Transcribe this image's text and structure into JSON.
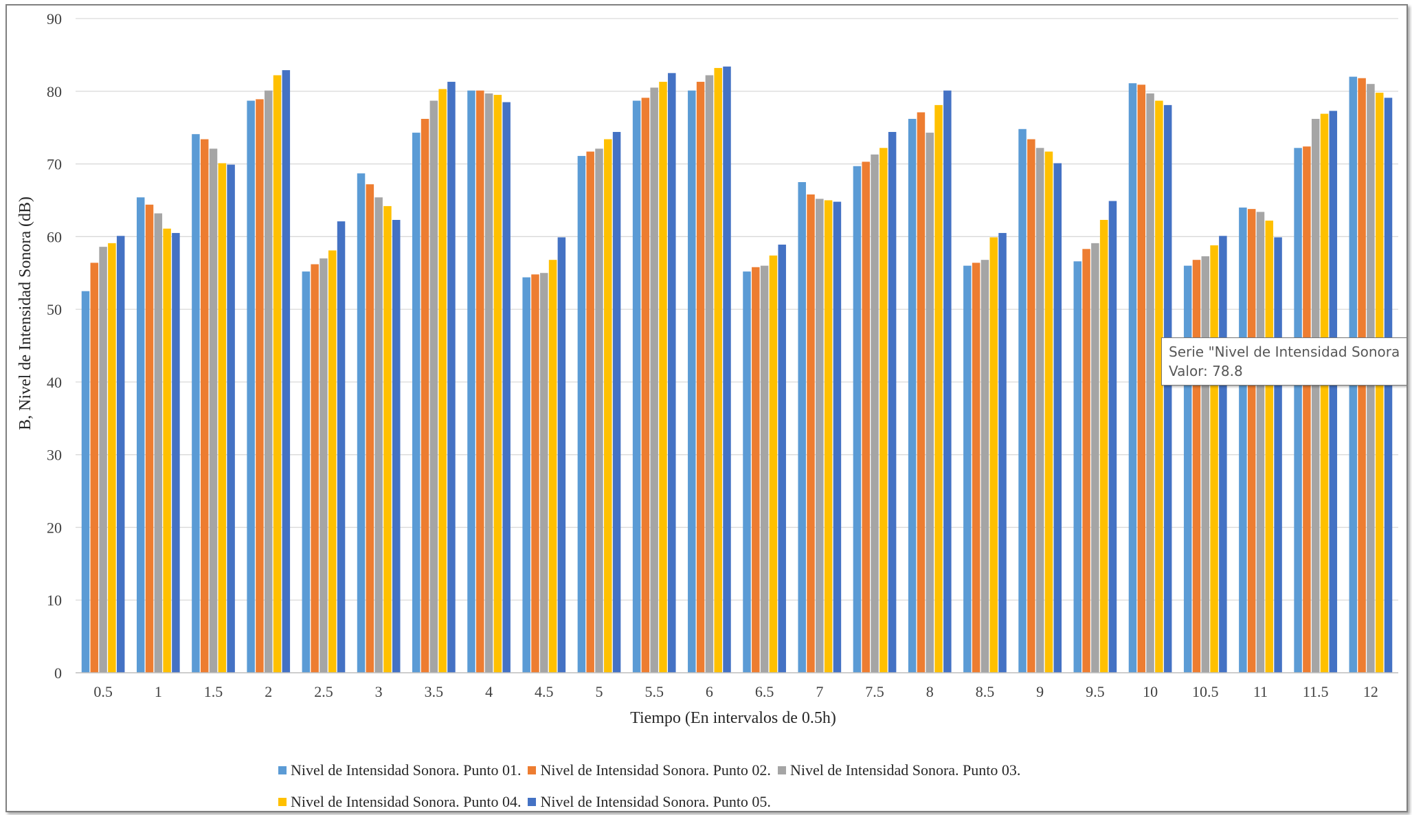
{
  "chart_data": {
    "type": "bar",
    "title": "",
    "xlabel": "Tiempo (En intervalos de 0.5h)",
    "ylabel": "B, Nivel de Intensidad Sonora (dB)",
    "ylim": [
      0,
      90
    ],
    "yticks": [
      "0",
      "10",
      "20",
      "30",
      "40",
      "50",
      "60",
      "70",
      "80",
      "90"
    ],
    "grid": true,
    "legend_position": "bottom",
    "categories": [
      "0.5",
      "1",
      "1.5",
      "2",
      "2.5",
      "3",
      "3.5",
      "4",
      "4.5",
      "5",
      "5.5",
      "6",
      "6.5",
      "7",
      "7.5",
      "8",
      "8.5",
      "9",
      "9.5",
      "10",
      "10.5",
      "11",
      "11.5",
      "12"
    ],
    "series": [
      {
        "name": "Nivel de Intensidad Sonora. Punto 01.",
        "color": "#5b9bd5",
        "values": [
          52.5,
          65.4,
          74.1,
          78.7,
          55.2,
          68.7,
          74.3,
          80.1,
          54.4,
          71.1,
          78.7,
          80.1,
          55.2,
          67.5,
          69.7,
          76.2,
          56.0,
          74.8,
          56.6,
          81.1,
          56.0,
          64.0,
          72.2,
          82.0
        ]
      },
      {
        "name": "Nivel de Intensidad Sonora. Punto 02.",
        "color": "#ed7d31",
        "values": [
          56.4,
          64.4,
          73.4,
          78.9,
          56.2,
          67.2,
          76.2,
          80.1,
          54.8,
          71.7,
          79.1,
          81.3,
          55.8,
          65.8,
          70.3,
          77.1,
          56.4,
          73.4,
          58.3,
          80.9,
          56.8,
          63.8,
          72.4,
          81.8
        ]
      },
      {
        "name": "Nivel de Intensidad Sonora. Punto 03.",
        "color": "#a5a5a5",
        "values": [
          58.6,
          63.2,
          72.1,
          80.1,
          57.0,
          65.4,
          78.7,
          79.7,
          55.0,
          72.1,
          80.5,
          82.2,
          56.0,
          65.2,
          71.3,
          74.3,
          56.8,
          72.2,
          59.1,
          79.7,
          57.3,
          63.4,
          76.2,
          81.0
        ]
      },
      {
        "name": "Nivel de Intensidad Sonora. Punto 04.",
        "color": "#ffc000",
        "values": [
          59.1,
          61.1,
          70.1,
          82.2,
          58.1,
          64.2,
          80.3,
          79.5,
          56.8,
          73.4,
          81.3,
          83.2,
          57.4,
          65.0,
          72.2,
          78.1,
          59.9,
          71.7,
          62.3,
          78.7,
          58.8,
          62.2,
          76.9,
          79.8
        ]
      },
      {
        "name": "Nivel de Intensidad Sonora. Punto 05.",
        "color": "#4472c4",
        "values": [
          60.1,
          60.5,
          69.9,
          82.9,
          62.1,
          62.3,
          81.3,
          78.5,
          59.9,
          74.4,
          82.5,
          83.4,
          58.9,
          64.8,
          74.4,
          80.1,
          60.5,
          70.1,
          64.9,
          78.1,
          60.1,
          59.9,
          77.3,
          79.1
        ]
      }
    ]
  },
  "tooltip": {
    "line1": "Serie \"Nivel de Intensidad Sonora",
    "line2": "Valor: 78.8"
  }
}
